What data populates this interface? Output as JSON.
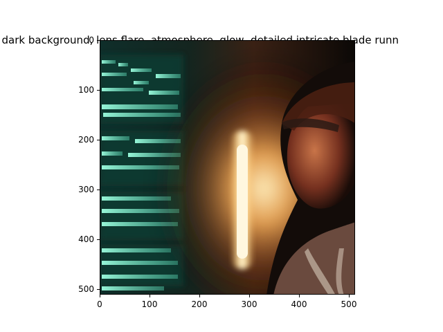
{
  "figure": {
    "title": ".  dark background, lens flare, atmosphere, glow, detailed,intricate,blade runn"
  },
  "image": {
    "description_icon": "cyberpunk-portrait-image",
    "colors": {
      "background": "#0c1614",
      "screen_glow": "#8ff0d0",
      "light_orange": "#ffb35a",
      "light_core": "#fff1c2",
      "skin": "#b65a3a",
      "shadow": "#120d0b"
    }
  },
  "axes": {
    "x_ticks": [
      "0",
      "100",
      "200",
      "300",
      "400",
      "500"
    ],
    "y_ticks": [
      "0",
      "100",
      "200",
      "300",
      "400",
      "500"
    ]
  }
}
